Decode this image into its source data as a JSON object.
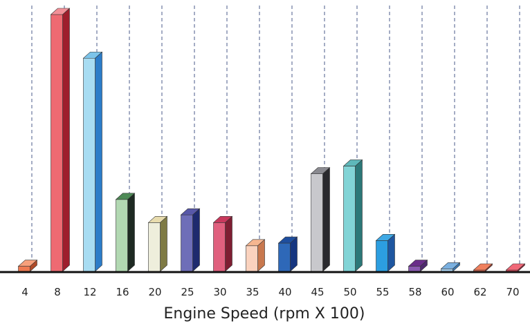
{
  "chart_data": {
    "type": "bar",
    "style": "3d",
    "categories": [
      "4",
      "8",
      "12",
      "16",
      "20",
      "25",
      "30",
      "35",
      "40",
      "45",
      "50",
      "55",
      "58",
      "60",
      "62",
      "70"
    ],
    "values": [
      0.02,
      1.0,
      0.83,
      0.28,
      0.19,
      0.22,
      0.19,
      0.1,
      0.11,
      0.38,
      0.41,
      0.12,
      0.02,
      0.01,
      0.005,
      0.005
    ],
    "ylim": [
      0,
      1.0
    ],
    "xlabel": "Engine Speed (rpm X 100)",
    "ylabel": "",
    "grid": "vertical dashed lines at each category",
    "legend": "none",
    "colors": {
      "4": {
        "front": "#ee7a52",
        "side": "#b04a28",
        "top": "#f7a07c"
      },
      "8": {
        "front": "#ee6a72",
        "side": "#9e1e2c",
        "top": "#f29098"
      },
      "12": {
        "front": "#a8dcf2",
        "side": "#2c7cc8",
        "top": "#7cc4ea"
      },
      "16": {
        "front": "#b2d8b2",
        "side": "#1e2a22",
        "top": "#4e8a56"
      },
      "20": {
        "front": "#eeeedc",
        "side": "#7e7a44",
        "top": "#e8dcae"
      },
      "25": {
        "front": "#6e6eb8",
        "side": "#1e2a6e",
        "top": "#5858a8"
      },
      "30": {
        "front": "#e0607e",
        "side": "#7e1e32",
        "top": "#c8385c"
      },
      "35": {
        "front": "#fad2be",
        "side": "#c8784e",
        "top": "#f6b690"
      },
      "40": {
        "front": "#2e68b8",
        "side": "#163680",
        "top": "#1e4e9e"
      },
      "45": {
        "front": "#c8c8cc",
        "side": "#2a2a2e",
        "top": "#8a8a90"
      },
      "50": {
        "front": "#82d4d6",
        "side": "#2c7878",
        "top": "#5eb8ba"
      },
      "55": {
        "front": "#2c9ee0",
        "side": "#1e56a0",
        "top": "#3ea8e4"
      },
      "58": {
        "front": "#8a5ab0",
        "side": "#4e2a6e",
        "top": "#6a2e8a"
      },
      "60": {
        "front": "#a8d0ee",
        "side": "#3a7ab8",
        "top": "#7ab0e0"
      },
      "62": {
        "front": "#ee6a52",
        "side": "#a8382a",
        "top": "#f0805e"
      },
      "70": {
        "front": "#ee4a5e",
        "side": "#a81e34",
        "top": "#f06878"
      }
    }
  }
}
